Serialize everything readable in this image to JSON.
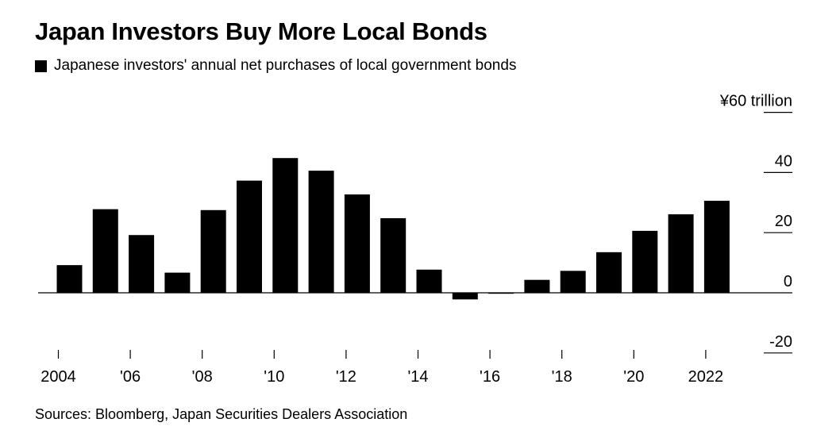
{
  "header": {
    "title": "Japan Investors Buy More Local Bonds",
    "legend_label": "Japanese investors' annual net purchases of local government bonds"
  },
  "footer": {
    "source": "Sources: Bloomberg, Japan Securities Dealers Association"
  },
  "colors": {
    "bar": "#000000",
    "background": "#ffffff"
  },
  "chart_data": {
    "type": "bar",
    "title": "Japan Investors Buy More Local Bonds",
    "ylabel": "¥ trillion",
    "ylim": [
      -20,
      60
    ],
    "grid": false,
    "legend_position": "top-left",
    "categories": [
      "2004",
      "2005",
      "2006",
      "2007",
      "2008",
      "2009",
      "2010",
      "2011",
      "2012",
      "2013",
      "2014",
      "2015",
      "2016",
      "2017",
      "2018",
      "2019",
      "2020",
      "2021",
      "2022"
    ],
    "series": [
      {
        "name": "Japanese investors' annual net purchases of local government bonds",
        "values": [
          9.2,
          27.8,
          19.2,
          6.7,
          27.5,
          37.3,
          44.8,
          40.6,
          32.7,
          24.8,
          7.7,
          -2.2,
          -0.3,
          4.3,
          7.3,
          13.5,
          20.6,
          26.1,
          30.6
        ]
      }
    ],
    "y_ticks": [
      {
        "value": 60,
        "label": "¥60 trillion"
      },
      {
        "value": 40,
        "label": "40"
      },
      {
        "value": 20,
        "label": "20"
      },
      {
        "value": 0,
        "label": "0"
      },
      {
        "value": -20,
        "label": "-20"
      }
    ],
    "x_ticks": [
      {
        "year": 2004,
        "label": "2004"
      },
      {
        "year": 2006,
        "label": "'06"
      },
      {
        "year": 2008,
        "label": "'08"
      },
      {
        "year": 2010,
        "label": "'10"
      },
      {
        "year": 2012,
        "label": "'12"
      },
      {
        "year": 2014,
        "label": "'14"
      },
      {
        "year": 2016,
        "label": "'16"
      },
      {
        "year": 2018,
        "label": "'18"
      },
      {
        "year": 2020,
        "label": "'20"
      },
      {
        "year": 2022,
        "label": "2022"
      }
    ]
  }
}
